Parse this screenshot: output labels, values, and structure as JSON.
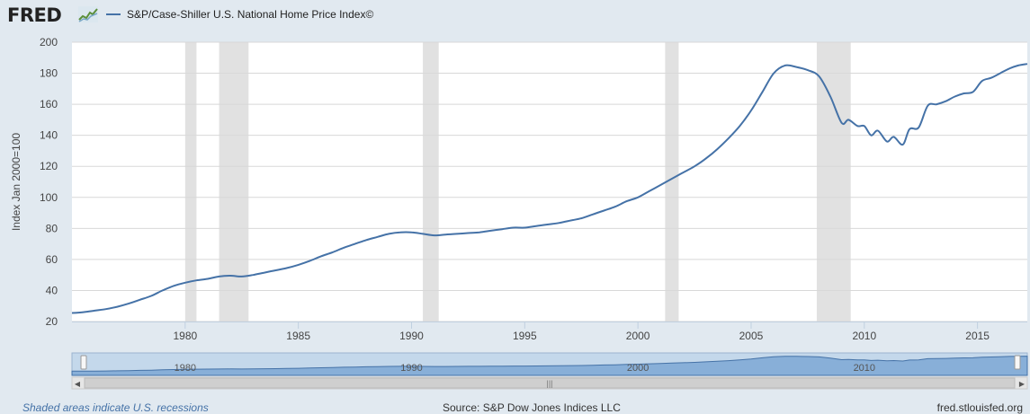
{
  "header": {
    "logo_text": "FRED",
    "legend_label": "S&P/Case-Shiller U.S. National Home Price Index©",
    "series_color": "#4572a7"
  },
  "footer": {
    "recession_note": "Shaded areas indicate U.S. recessions",
    "source": "Source: S&P Dow Jones Indices LLC",
    "site": "fred.stlouisfed.org"
  },
  "chart_data": {
    "type": "line",
    "title": "",
    "xlabel": "",
    "ylabel": "Index Jan 2000=100",
    "ylim": [
      20,
      200
    ],
    "xlim": [
      1975.0,
      2017.2
    ],
    "yticks": [
      20,
      40,
      60,
      80,
      100,
      120,
      140,
      160,
      180,
      200
    ],
    "xticks": [
      1980,
      1985,
      1990,
      1995,
      2000,
      2005,
      2010,
      2015
    ],
    "grid": true,
    "legend_position": "top-left",
    "recessions": [
      [
        1980.0,
        1980.5
      ],
      [
        1981.5,
        1982.8
      ],
      [
        1990.5,
        1991.2
      ],
      [
        2001.2,
        2001.8
      ],
      [
        2007.9,
        2009.4
      ]
    ],
    "series": [
      {
        "name": "S&P/Case-Shiller U.S. National Home Price Index©",
        "color": "#4572a7",
        "x": [
          1975.0,
          1975.5,
          1976.0,
          1976.5,
          1977.0,
          1977.5,
          1978.0,
          1978.5,
          1979.0,
          1979.5,
          1980.0,
          1980.5,
          1981.0,
          1981.5,
          1982.0,
          1982.5,
          1983.0,
          1983.5,
          1984.0,
          1984.5,
          1985.0,
          1985.5,
          1986.0,
          1986.5,
          1987.0,
          1987.5,
          1988.0,
          1988.5,
          1989.0,
          1989.5,
          1990.0,
          1990.5,
          1991.0,
          1991.5,
          1992.0,
          1992.5,
          1993.0,
          1993.5,
          1994.0,
          1994.5,
          1995.0,
          1995.5,
          1996.0,
          1996.5,
          1997.0,
          1997.5,
          1998.0,
          1998.5,
          1999.0,
          1999.5,
          2000.0,
          2000.5,
          2001.0,
          2001.5,
          2002.0,
          2002.5,
          2003.0,
          2003.5,
          2004.0,
          2004.5,
          2005.0,
          2005.5,
          2006.0,
          2006.5,
          2007.0,
          2007.5,
          2008.0,
          2008.5,
          2009.0,
          2009.3,
          2009.7,
          2010.0,
          2010.3,
          2010.6,
          2011.0,
          2011.3,
          2011.7,
          2012.0,
          2012.4,
          2012.8,
          2013.2,
          2013.6,
          2014.0,
          2014.4,
          2014.8,
          2015.2,
          2015.6,
          2016.0,
          2016.4,
          2016.8,
          2017.2
        ],
        "values": [
          25.5,
          26,
          27,
          28,
          29.5,
          31.5,
          34,
          36.5,
          40,
          43,
          45,
          46.5,
          47.5,
          49,
          49.5,
          49,
          50,
          51.5,
          53,
          54.5,
          56.5,
          59,
          62,
          64.5,
          67.5,
          70,
          72.5,
          74.5,
          76.5,
          77.5,
          77.5,
          76.5,
          75.5,
          76,
          76.5,
          77,
          77.5,
          78.5,
          79.5,
          80.5,
          80.5,
          81.5,
          82.5,
          83.5,
          85,
          86.5,
          89,
          91.5,
          94,
          97.5,
          100,
          104,
          108,
          112,
          116,
          120,
          125,
          131,
          138,
          146,
          156,
          168,
          180,
          185,
          184,
          182,
          178,
          165,
          148,
          150,
          146,
          146,
          140,
          143,
          136,
          139,
          134,
          144,
          145,
          159,
          160,
          162,
          165,
          167,
          168,
          175,
          177,
          180,
          183,
          185,
          186
        ]
      }
    ]
  },
  "navigator": {
    "labels": [
      "1980",
      "1990",
      "2000",
      "2010"
    ]
  }
}
